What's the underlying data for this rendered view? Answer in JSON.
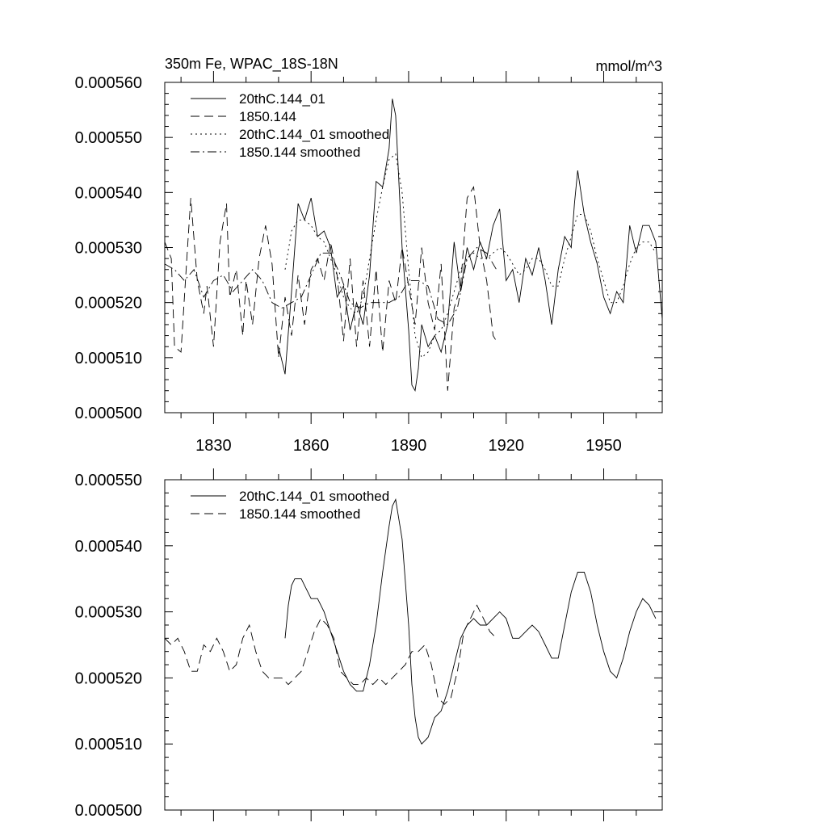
{
  "chart_data": [
    {
      "type": "line",
      "title": "350m Fe, WPAC_18S-18N",
      "units": "mmol/m^3",
      "xlim": [
        1815,
        1968
      ],
      "ylim": [
        0.0005,
        0.00056
      ],
      "xticks": [
        1830,
        1860,
        1890,
        1920,
        1950
      ],
      "yticks": [
        "0.000500",
        "0.000510",
        "0.000520",
        "0.000530",
        "0.000540",
        "0.000550",
        "0.000560"
      ],
      "legend_position": "top-left",
      "series": [
        {
          "name": "20thC.144_01",
          "style": "solid",
          "x": [
            1850,
            1852,
            1854,
            1856,
            1858,
            1860,
            1862,
            1864,
            1866,
            1868,
            1870,
            1872,
            1874,
            1876,
            1878,
            1880,
            1882,
            1884,
            1885,
            1886,
            1888,
            1890,
            1891,
            1892,
            1893,
            1894,
            1896,
            1898,
            1900,
            1902,
            1904,
            1906,
            1908,
            1910,
            1912,
            1914,
            1916,
            1918,
            1920,
            1922,
            1924,
            1926,
            1928,
            1930,
            1932,
            1934,
            1936,
            1938,
            1940,
            1941,
            1942,
            1944,
            1946,
            1948,
            1950,
            1952,
            1954,
            1956,
            1958,
            1960,
            1962,
            1964,
            1966,
            1968
          ],
          "values": [
            0.000512,
            0.000507,
            0.000522,
            0.000538,
            0.000535,
            0.000539,
            0.000532,
            0.000533,
            0.00053,
            0.000521,
            0.000523,
            0.000515,
            0.00052,
            0.000516,
            0.000525,
            0.000542,
            0.000541,
            0.000548,
            0.000557,
            0.000554,
            0.00053,
            0.000515,
            0.000505,
            0.000504,
            0.000508,
            0.000516,
            0.000512,
            0.000514,
            0.000511,
            0.000516,
            0.000531,
            0.000522,
            0.00053,
            0.000526,
            0.000531,
            0.000528,
            0.000534,
            0.000537,
            0.000524,
            0.000526,
            0.00052,
            0.000528,
            0.000525,
            0.00053,
            0.000524,
            0.000516,
            0.000526,
            0.000532,
            0.00053,
            0.000538,
            0.000544,
            0.000536,
            0.000531,
            0.000527,
            0.000521,
            0.000518,
            0.000522,
            0.00052,
            0.000534,
            0.000529,
            0.000534,
            0.000534,
            0.000531,
            0.000517
          ]
        },
        {
          "name": "1850.144",
          "style": "dashed",
          "x": [
            1815,
            1817,
            1818,
            1820,
            1822,
            1823,
            1825,
            1827,
            1828,
            1830,
            1832,
            1834,
            1835,
            1837,
            1839,
            1840,
            1842,
            1844,
            1846,
            1848,
            1850,
            1852,
            1854,
            1856,
            1858,
            1860,
            1862,
            1864,
            1866,
            1868,
            1870,
            1872,
            1874,
            1876,
            1878,
            1880,
            1882,
            1884,
            1886,
            1888,
            1890,
            1892,
            1894,
            1896,
            1898,
            1900,
            1902,
            1904,
            1906,
            1908,
            1910,
            1912,
            1914,
            1916,
            1917
          ],
          "values": [
            0.000531,
            0.000528,
            0.000512,
            0.000511,
            0.00053,
            0.000539,
            0.000524,
            0.000518,
            0.000523,
            0.000512,
            0.000531,
            0.000538,
            0.000521,
            0.000526,
            0.000514,
            0.000524,
            0.000516,
            0.000528,
            0.000534,
            0.000527,
            0.00051,
            0.000521,
            0.000514,
            0.000525,
            0.000516,
            0.000526,
            0.000528,
            0.000524,
            0.000531,
            0.000525,
            0.000513,
            0.000528,
            0.000512,
            0.000524,
            0.000512,
            0.000526,
            0.000511,
            0.000524,
            0.00052,
            0.00053,
            0.000523,
            0.000516,
            0.00053,
            0.00052,
            0.000515,
            0.000527,
            0.000504,
            0.000519,
            0.000523,
            0.000539,
            0.000541,
            0.00053,
            0.000524,
            0.000514,
            0.000513
          ]
        },
        {
          "name": "20thC.144_01 smoothed",
          "style": "dotted",
          "x": [
            1852,
            1854,
            1856,
            1858,
            1860,
            1862,
            1864,
            1866,
            1868,
            1870,
            1872,
            1874,
            1876,
            1878,
            1880,
            1882,
            1884,
            1886,
            1888,
            1890,
            1892,
            1894,
            1896,
            1898,
            1900,
            1902,
            1904,
            1906,
            1908,
            1910,
            1912,
            1914,
            1916,
            1918,
            1920,
            1922,
            1924,
            1926,
            1928,
            1930,
            1932,
            1934,
            1936,
            1938,
            1940,
            1942,
            1944,
            1946,
            1948,
            1950,
            1952,
            1954,
            1956,
            1958,
            1960,
            1962,
            1964,
            1966
          ],
          "values": [
            0.000526,
            0.000533,
            0.000535,
            0.000535,
            0.000534,
            0.000532,
            0.000531,
            0.000528,
            0.000525,
            0.000521,
            0.000519,
            0.000518,
            0.000521,
            0.000528,
            0.000535,
            0.000541,
            0.000546,
            0.000547,
            0.00054,
            0.000526,
            0.000514,
            0.00051,
            0.000511,
            0.000514,
            0.000515,
            0.000518,
            0.000522,
            0.000526,
            0.000528,
            0.000529,
            0.000528,
            0.000528,
            0.000529,
            0.00053,
            0.000529,
            0.000527,
            0.000525,
            0.000526,
            0.000528,
            0.000528,
            0.000526,
            0.000523,
            0.000523,
            0.000528,
            0.000532,
            0.000536,
            0.000536,
            0.000533,
            0.000528,
            0.000524,
            0.00052,
            0.00052,
            0.000523,
            0.000527,
            0.00053,
            0.000531,
            0.000531,
            0.000529
          ]
        },
        {
          "name": "1850.144 smoothed",
          "style": "dashdot",
          "x": [
            1815,
            1818,
            1821,
            1824,
            1827,
            1830,
            1833,
            1836,
            1839,
            1842,
            1845,
            1848,
            1851,
            1854,
            1857,
            1860,
            1863,
            1866,
            1869,
            1872,
            1875,
            1878,
            1881,
            1884,
            1887,
            1890,
            1893,
            1896,
            1899,
            1902,
            1905,
            1908,
            1911,
            1914,
            1917
          ],
          "values": [
            0.000527,
            0.000526,
            0.000524,
            0.000526,
            0.000521,
            0.000524,
            0.000525,
            0.000522,
            0.000524,
            0.000526,
            0.000524,
            0.00052,
            0.000519,
            0.00052,
            0.000521,
            0.000525,
            0.000529,
            0.000529,
            0.000525,
            0.00052,
            0.000519,
            0.00052,
            0.00052,
            0.00052,
            0.000521,
            0.000524,
            0.000524,
            0.000523,
            0.000517,
            0.000516,
            0.000519,
            0.000528,
            0.00053,
            0.000529,
            0.000526
          ]
        }
      ]
    },
    {
      "type": "line",
      "title": "",
      "xlim": [
        1815,
        1968
      ],
      "ylim": [
        0.0005,
        0.00055
      ],
      "xticks": [
        1830,
        1860,
        1890,
        1920,
        1950
      ],
      "yticks": [
        "0.000500",
        "0.000510",
        "0.000520",
        "0.000530",
        "0.000540",
        "0.000550"
      ],
      "legend_position": "top-left",
      "series": [
        {
          "name": "20thC.144_01 smoothed",
          "style": "solid",
          "x": [
            1852,
            1853,
            1854,
            1855,
            1856,
            1857,
            1858,
            1860,
            1862,
            1864,
            1866,
            1868,
            1870,
            1872,
            1874,
            1876,
            1878,
            1880,
            1882,
            1884,
            1885,
            1886,
            1888,
            1890,
            1891,
            1892,
            1893,
            1894,
            1896,
            1898,
            1900,
            1902,
            1904,
            1906,
            1908,
            1910,
            1912,
            1914,
            1916,
            1918,
            1920,
            1922,
            1924,
            1926,
            1928,
            1930,
            1932,
            1934,
            1936,
            1938,
            1940,
            1942,
            1944,
            1946,
            1948,
            1950,
            1952,
            1954,
            1956,
            1958,
            1960,
            1962,
            1964,
            1966
          ],
          "values": [
            0.000526,
            0.000531,
            0.000534,
            0.000535,
            0.000535,
            0.000535,
            0.000534,
            0.000532,
            0.000532,
            0.00053,
            0.000527,
            0.000524,
            0.000521,
            0.000519,
            0.000518,
            0.000518,
            0.000522,
            0.000528,
            0.000536,
            0.000543,
            0.000546,
            0.000547,
            0.000541,
            0.000528,
            0.000519,
            0.000514,
            0.000511,
            0.00051,
            0.000511,
            0.000514,
            0.000515,
            0.000518,
            0.000522,
            0.000526,
            0.000528,
            0.000529,
            0.000528,
            0.000528,
            0.000529,
            0.00053,
            0.000529,
            0.000526,
            0.000526,
            0.000527,
            0.000528,
            0.000527,
            0.000525,
            0.000523,
            0.000523,
            0.000528,
            0.000533,
            0.000536,
            0.000536,
            0.000533,
            0.000528,
            0.000524,
            0.000521,
            0.00052,
            0.000523,
            0.000527,
            0.00053,
            0.000532,
            0.000531,
            0.000529
          ]
        },
        {
          "name": "1850.144 smoothed",
          "style": "dashed",
          "x": [
            1815,
            1817,
            1819,
            1821,
            1823,
            1825,
            1827,
            1829,
            1831,
            1833,
            1835,
            1837,
            1839,
            1841,
            1843,
            1845,
            1847,
            1849,
            1851,
            1853,
            1855,
            1857,
            1859,
            1861,
            1863,
            1865,
            1867,
            1869,
            1871,
            1873,
            1875,
            1877,
            1879,
            1881,
            1883,
            1885,
            1887,
            1889,
            1891,
            1893,
            1895,
            1897,
            1899,
            1901,
            1903,
            1905,
            1907,
            1909,
            1911,
            1913,
            1915,
            1917
          ],
          "values": [
            0.000526,
            0.000525,
            0.000526,
            0.000524,
            0.000521,
            0.000521,
            0.000525,
            0.000524,
            0.000526,
            0.000524,
            0.000521,
            0.000522,
            0.000526,
            0.000528,
            0.000524,
            0.000521,
            0.00052,
            0.00052,
            0.00052,
            0.000519,
            0.00052,
            0.000521,
            0.000524,
            0.000527,
            0.000529,
            0.000528,
            0.000526,
            0.000521,
            0.00052,
            0.000519,
            0.000519,
            0.00052,
            0.000519,
            0.00052,
            0.000519,
            0.00052,
            0.000521,
            0.000522,
            0.000524,
            0.000524,
            0.000525,
            0.000522,
            0.000517,
            0.000516,
            0.000517,
            0.000521,
            0.000527,
            0.000529,
            0.000531,
            0.000529,
            0.000527,
            0.000526
          ]
        }
      ]
    }
  ]
}
